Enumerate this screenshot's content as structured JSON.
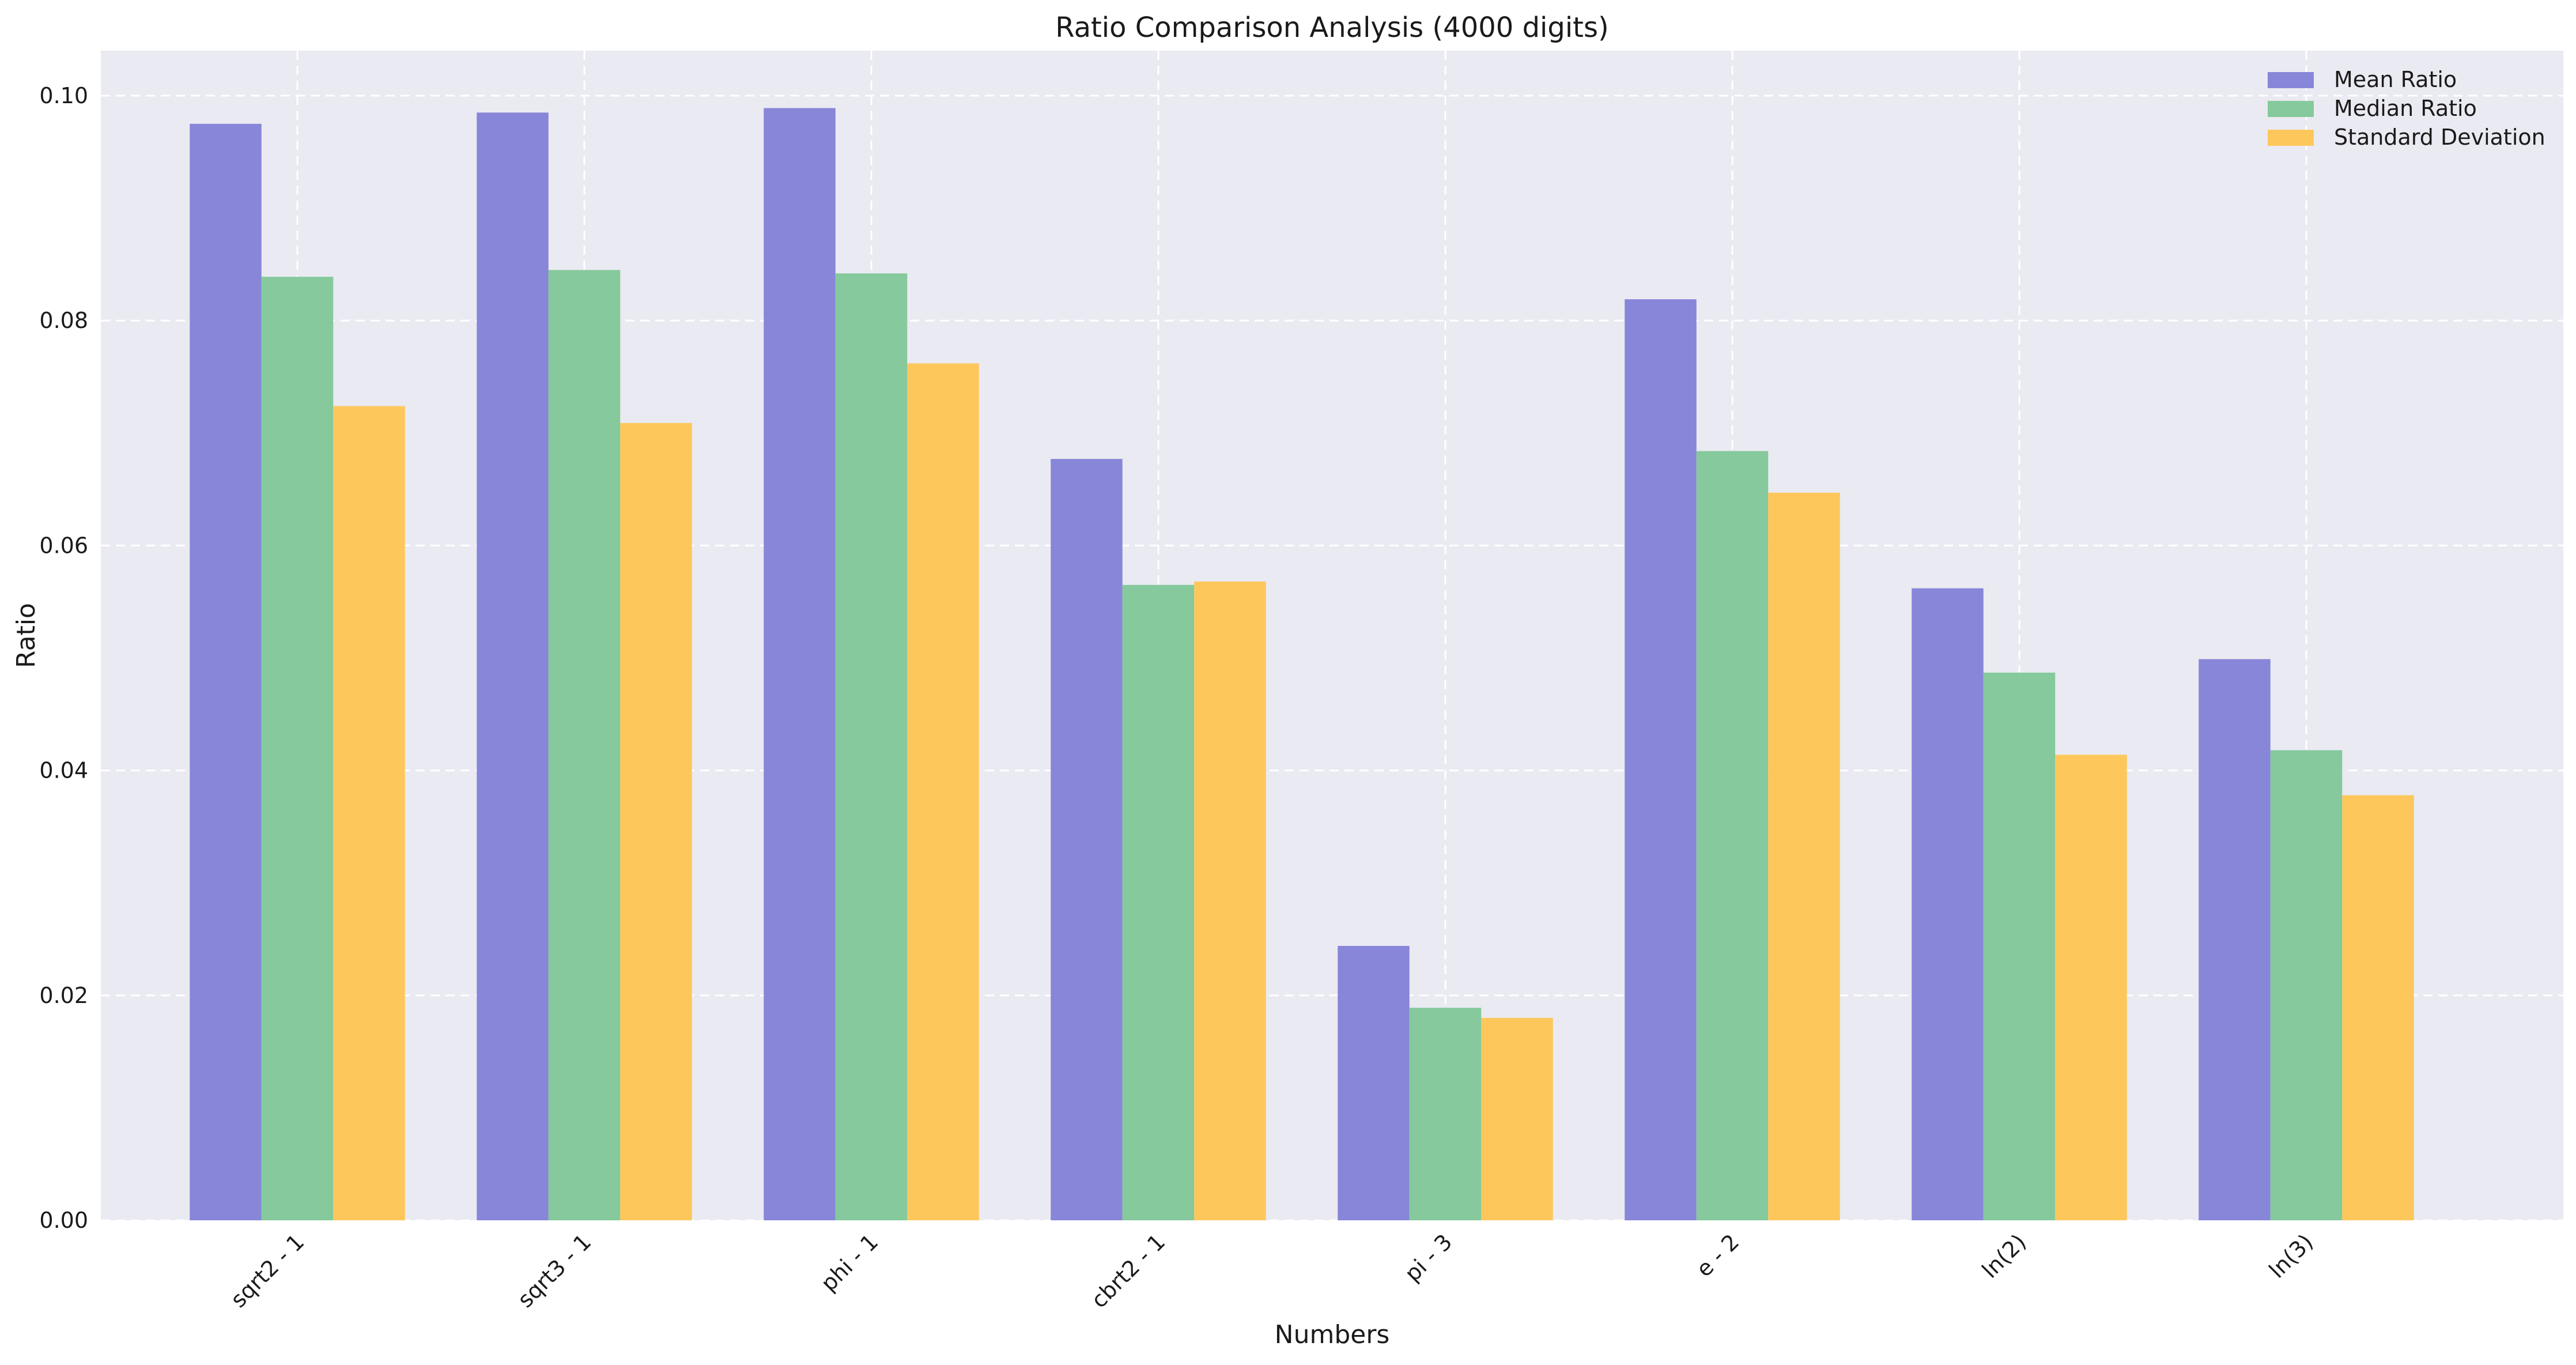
{
  "chart_data": {
    "type": "bar",
    "title": "Ratio Comparison Analysis (4000 digits)",
    "xlabel": "Numbers",
    "ylabel": "Ratio",
    "categories": [
      "sqrt2 - 1",
      "sqrt3 - 1",
      "phi - 1",
      "cbrt2 - 1",
      "pi - 3",
      "e - 2",
      "ln(2)",
      "ln(3)"
    ],
    "series": [
      {
        "name": "Mean Ratio",
        "color": "#8886d8",
        "values": [
          0.0975,
          0.0985,
          0.0989,
          0.0677,
          0.0244,
          0.0819,
          0.0562,
          0.0499
        ]
      },
      {
        "name": "Median Ratio",
        "color": "#85c99c",
        "values": [
          0.0839,
          0.0845,
          0.0842,
          0.0565,
          0.0189,
          0.0684,
          0.0487,
          0.0418
        ]
      },
      {
        "name": "Standard Deviation",
        "color": "#fdc75c",
        "values": [
          0.0724,
          0.0709,
          0.0762,
          0.0568,
          0.018,
          0.0647,
          0.0414,
          0.0378
        ]
      }
    ],
    "ylim": [
      0,
      0.104
    ],
    "yticks": [
      "0.00",
      "0.02",
      "0.04",
      "0.06",
      "0.08",
      "0.10"
    ],
    "grid": true,
    "legend_position": "top-right",
    "background_color": "#eaeaf2"
  }
}
